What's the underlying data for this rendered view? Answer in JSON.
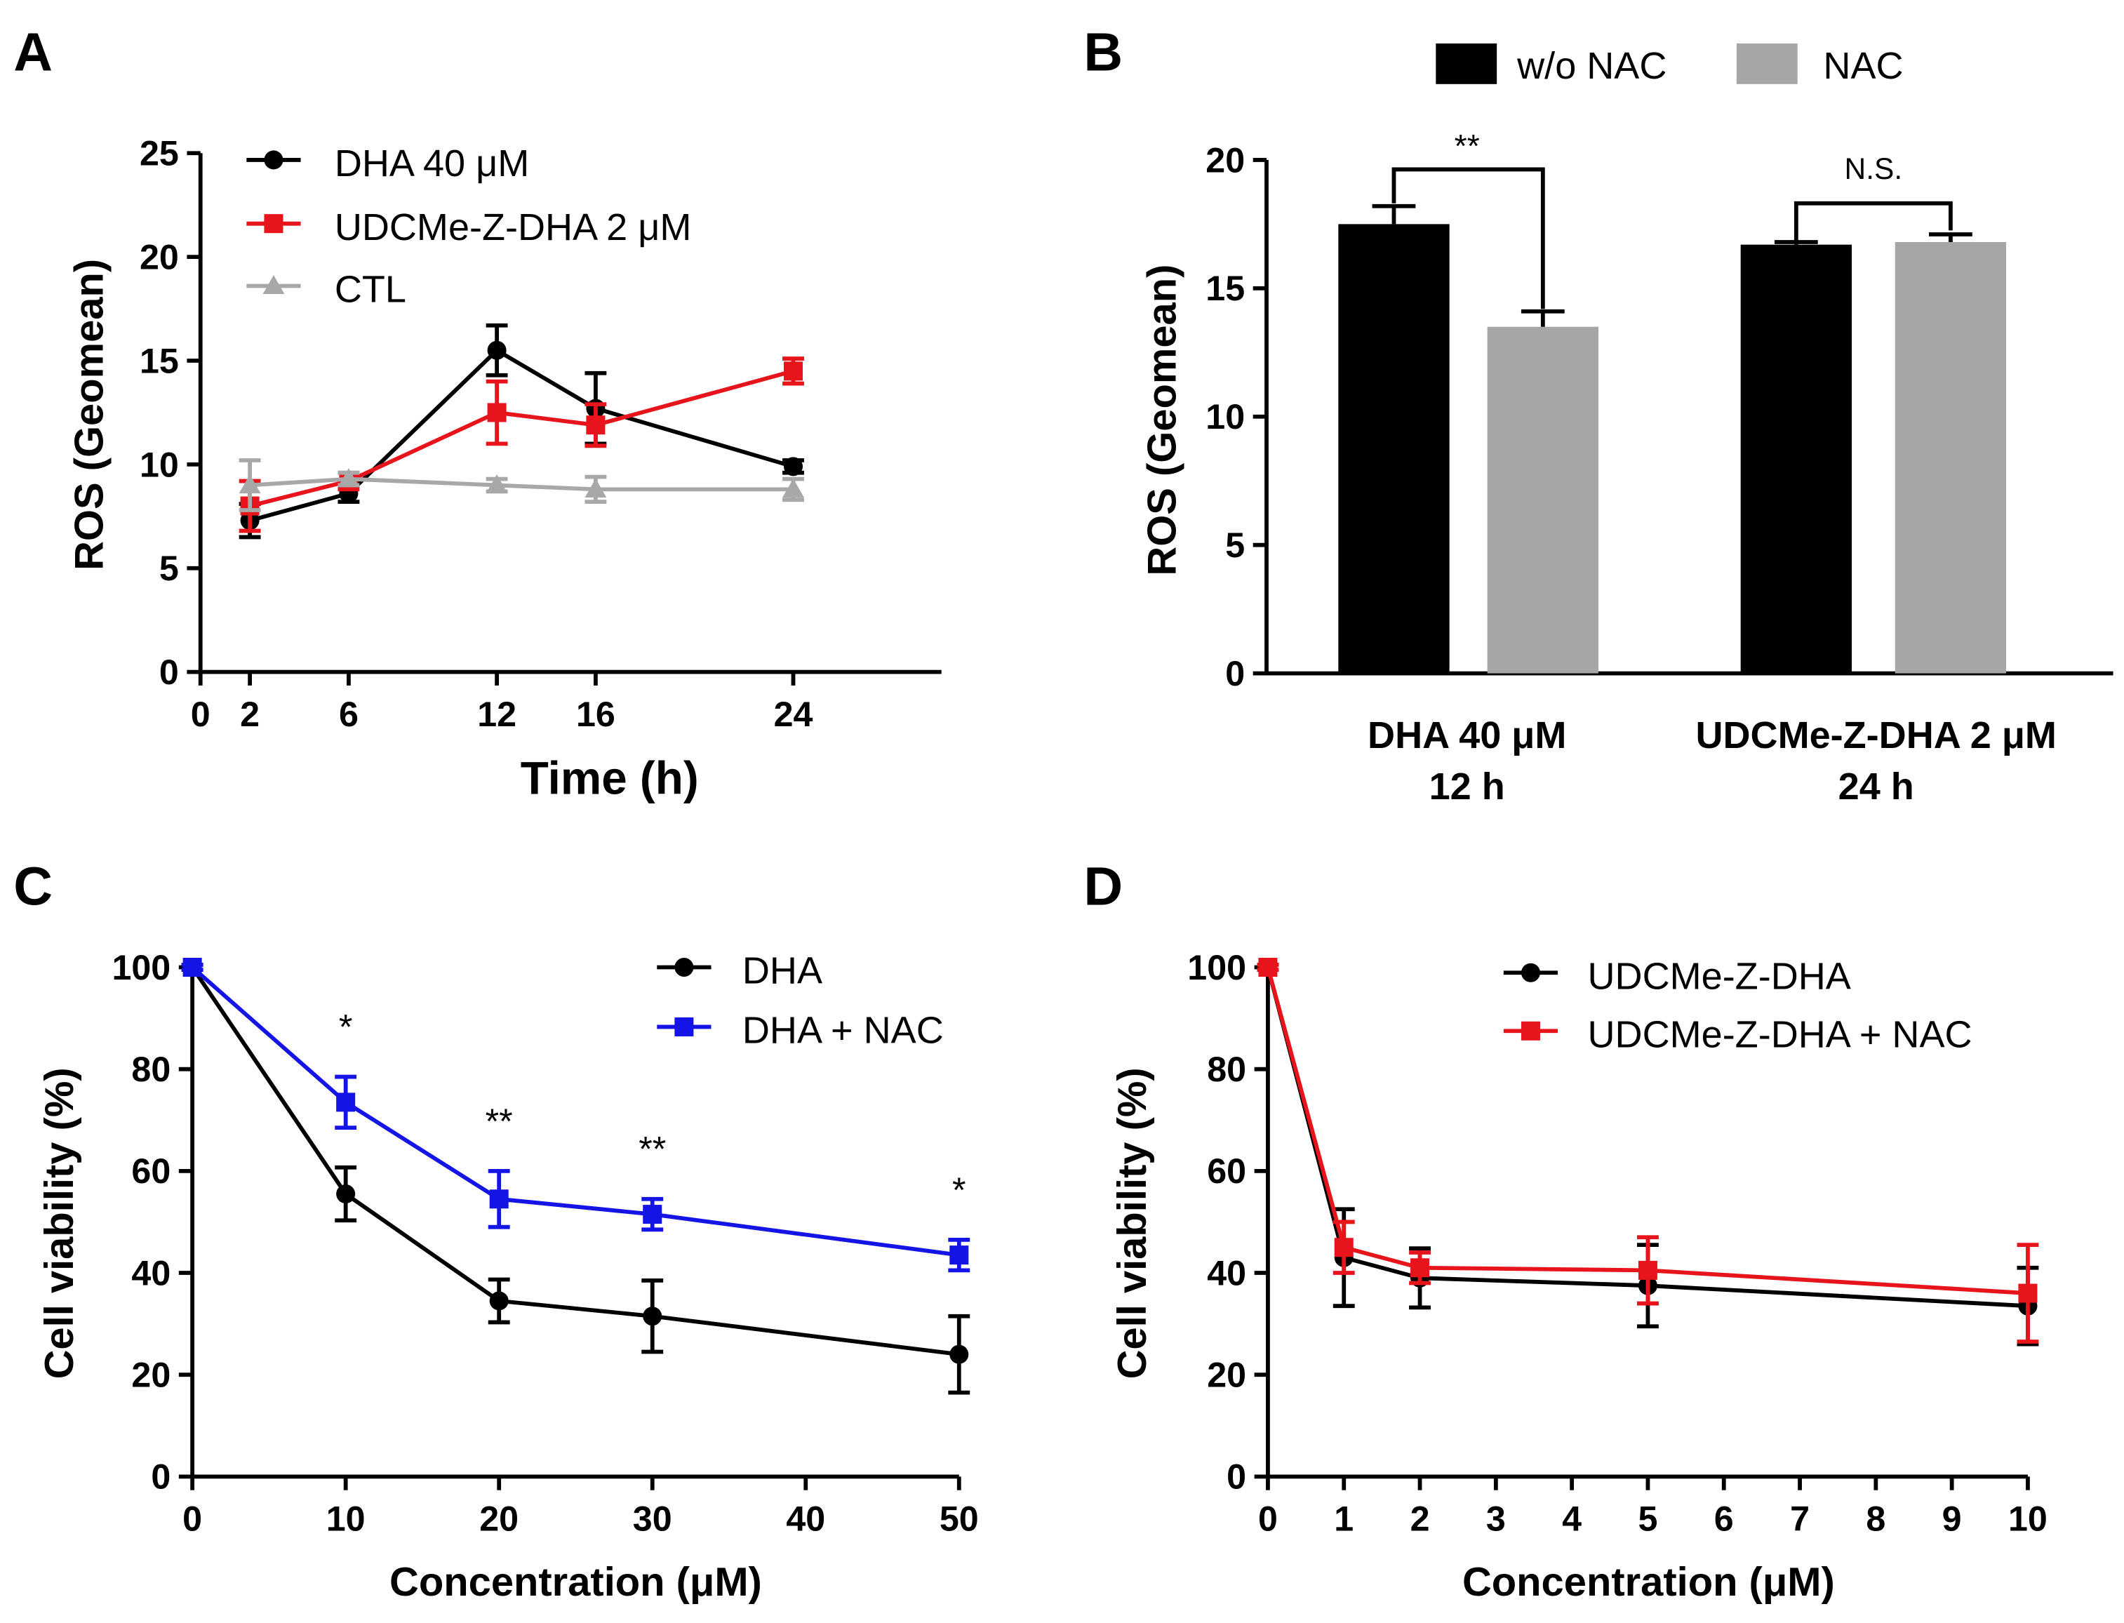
{
  "chart_data": [
    {
      "panel": "A",
      "type": "line",
      "xlabel": "Time (h)",
      "ylabel": "ROS (Geomean)",
      "xlim": [
        0,
        30
      ],
      "ylim": [
        0,
        25
      ],
      "x_ticks": [
        0,
        2,
        6,
        12,
        16,
        24
      ],
      "y_ticks": [
        0,
        5,
        10,
        15,
        20,
        25
      ],
      "series": [
        {
          "name": "DHA 40 μM",
          "color": "#000000",
          "marker": "circle",
          "x": [
            2,
            6,
            12,
            16,
            24
          ],
          "values": [
            7.3,
            8.6,
            15.5,
            12.7,
            9.9
          ],
          "errors": [
            0.8,
            0.4,
            1.2,
            1.7,
            0.3
          ]
        },
        {
          "name": "UDCMe-Z-DHA 2 μM",
          "color": "#e8141c",
          "marker": "square",
          "x": [
            2,
            6,
            12,
            16,
            24
          ],
          "values": [
            8.0,
            9.2,
            12.5,
            11.9,
            14.5
          ],
          "errors": [
            1.2,
            0.4,
            1.5,
            1.0,
            0.6
          ]
        },
        {
          "name": "CTL",
          "color": "#a8a8a8",
          "marker": "triangle",
          "x": [
            2,
            6,
            12,
            16,
            24
          ],
          "values": [
            9.0,
            9.3,
            9.0,
            8.8,
            8.8
          ],
          "errors": [
            1.2,
            0.3,
            0.3,
            0.6,
            0.5
          ]
        }
      ]
    },
    {
      "panel": "B",
      "type": "bar",
      "ylabel": "ROS (Geomean)",
      "ylim": [
        0,
        20
      ],
      "y_ticks": [
        0,
        5,
        10,
        15,
        20
      ],
      "groups": [
        {
          "label_line1": "DHA 40 μM",
          "label_line2": "12 h"
        },
        {
          "label_line1": "UDCMe-Z-DHA 2 μM",
          "label_line2": "24 h"
        }
      ],
      "series": [
        {
          "name": "w/o NAC",
          "color": "#000000",
          "values": [
            17.5,
            16.7
          ],
          "errors": [
            0.7,
            0.1
          ]
        },
        {
          "name": "NAC",
          "color": "#a6a6a6",
          "values": [
            13.5,
            16.8
          ],
          "errors": [
            0.6,
            0.3
          ]
        }
      ],
      "significance": [
        "**",
        "N.S."
      ]
    },
    {
      "panel": "C",
      "type": "line",
      "xlabel": "Concentration (μM)",
      "ylabel": "Cell viability (%)",
      "xlim": [
        0,
        50
      ],
      "ylim": [
        0,
        100
      ],
      "x_ticks": [
        0,
        10,
        20,
        30,
        40,
        50
      ],
      "y_ticks": [
        0,
        20,
        40,
        60,
        80,
        100
      ],
      "series": [
        {
          "name": "DHA",
          "color": "#000000",
          "marker": "circle",
          "x": [
            0,
            10,
            20,
            30,
            50
          ],
          "values": [
            100,
            55.5,
            34.5,
            31.5,
            24
          ],
          "errors": [
            0.5,
            5.2,
            4.2,
            7,
            7.5
          ]
        },
        {
          "name": "DHA + NAC",
          "color": "#1414e6",
          "marker": "square",
          "x": [
            0,
            10,
            20,
            30,
            50
          ],
          "values": [
            100,
            73.5,
            54.5,
            51.5,
            43.5
          ],
          "errors": [
            0.5,
            5,
            5.5,
            3,
            3
          ]
        }
      ],
      "significance": [
        {
          "x": 10,
          "text": "*"
        },
        {
          "x": 20,
          "text": "**"
        },
        {
          "x": 30,
          "text": "**"
        },
        {
          "x": 50,
          "text": "*"
        }
      ]
    },
    {
      "panel": "D",
      "type": "line",
      "xlabel": "Concentration (μM)",
      "ylabel": "Cell viability (%)",
      "xlim": [
        0,
        10
      ],
      "ylim": [
        0,
        100
      ],
      "x_ticks": [
        0,
        1,
        2,
        3,
        4,
        5,
        6,
        7,
        8,
        9,
        10
      ],
      "y_ticks": [
        0,
        20,
        40,
        60,
        80,
        100
      ],
      "series": [
        {
          "name": "UDCMe-Z-DHA",
          "color": "#000000",
          "marker": "circle",
          "x": [
            0,
            1,
            2,
            5,
            10
          ],
          "values": [
            100,
            43,
            39,
            37.5,
            33.5
          ],
          "errors": [
            0.5,
            9.5,
            5.8,
            8,
            7.5
          ]
        },
        {
          "name": "UDCMe-Z-DHA + NAC",
          "color": "#e8141c",
          "marker": "square",
          "x": [
            0,
            1,
            2,
            5,
            10
          ],
          "values": [
            100,
            45,
            41,
            40.5,
            36
          ],
          "errors": [
            0.5,
            5,
            3,
            6.5,
            9.5
          ]
        }
      ]
    }
  ]
}
